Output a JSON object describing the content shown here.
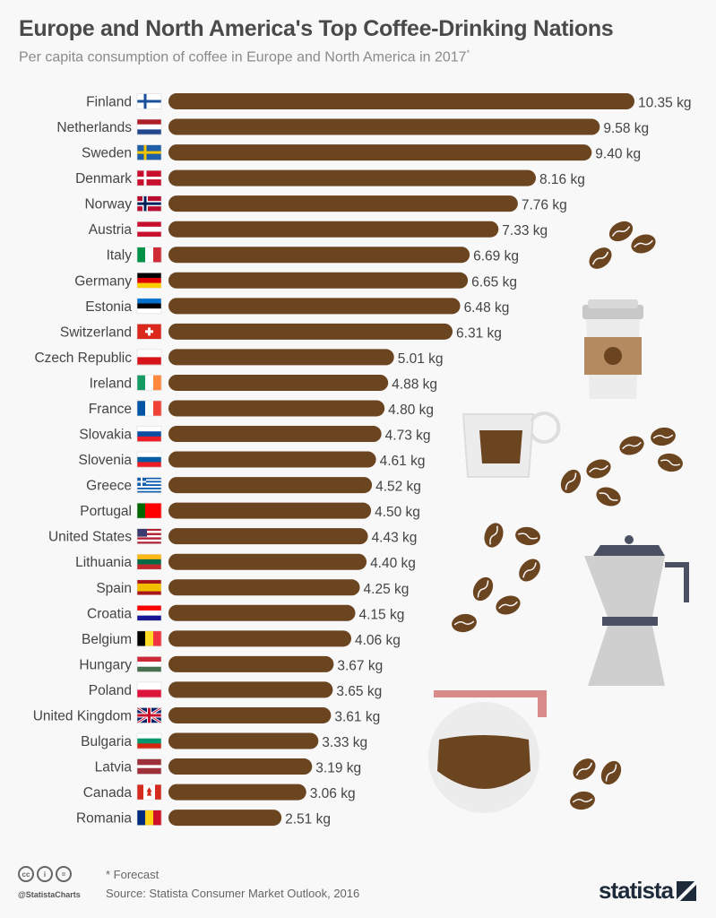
{
  "title": "Europe and North America's Top Coffee-Drinking Nations",
  "subtitle": "Per capita consumption of coffee in Europe and North America in 2017",
  "subtitle_marker": "*",
  "footer": {
    "note": "* Forecast",
    "source": "Source: Statista Consumer Market Outlook, 2016",
    "handle": "@StatistaCharts",
    "license_icons": [
      "cc-icon",
      "by-icon",
      "nd-icon"
    ],
    "license_glyphs": [
      "cc",
      "i",
      "="
    ],
    "logo": "statista"
  },
  "chart_data": {
    "type": "bar",
    "orientation": "horizontal",
    "unit": "kg",
    "bar_color": "#6b4420",
    "categories": [
      "Finland",
      "Netherlands",
      "Sweden",
      "Denmark",
      "Norway",
      "Austria",
      "Italy",
      "Germany",
      "Estonia",
      "Switzerland",
      "Czech Republic",
      "Ireland",
      "France",
      "Slovakia",
      "Slovenia",
      "Greece",
      "Portugal",
      "United States",
      "Lithuania",
      "Spain",
      "Croatia",
      "Belgium",
      "Hungary",
      "Poland",
      "United Kingdom",
      "Bulgaria",
      "Latvia",
      "Canada",
      "Romania"
    ],
    "values": [
      10.35,
      9.58,
      9.4,
      8.16,
      7.76,
      7.33,
      6.69,
      6.65,
      6.48,
      6.31,
      5.01,
      4.88,
      4.8,
      4.73,
      4.61,
      4.52,
      4.5,
      4.43,
      4.4,
      4.25,
      4.15,
      4.06,
      3.67,
      3.65,
      3.61,
      3.33,
      3.19,
      3.06,
      2.51
    ],
    "value_labels": [
      "10.35 kg",
      "9.58 kg",
      "9.40 kg",
      "8.16 kg",
      "7.76 kg",
      "7.33 kg",
      "6.69 kg",
      "6.65 kg",
      "6.48 kg",
      "6.31 kg",
      "5.01 kg",
      "4.88 kg",
      "4.80 kg",
      "4.73 kg",
      "4.61 kg",
      "4.52 kg",
      "4.50 kg",
      "4.43 kg",
      "4.40 kg",
      "4.25 kg",
      "4.15 kg",
      "4.06 kg",
      "3.67 kg",
      "3.65 kg",
      "3.61 kg",
      "3.33 kg",
      "3.19 kg",
      "3.06 kg",
      "2.51 kg"
    ],
    "grid": false,
    "axis_visible": false
  }
}
